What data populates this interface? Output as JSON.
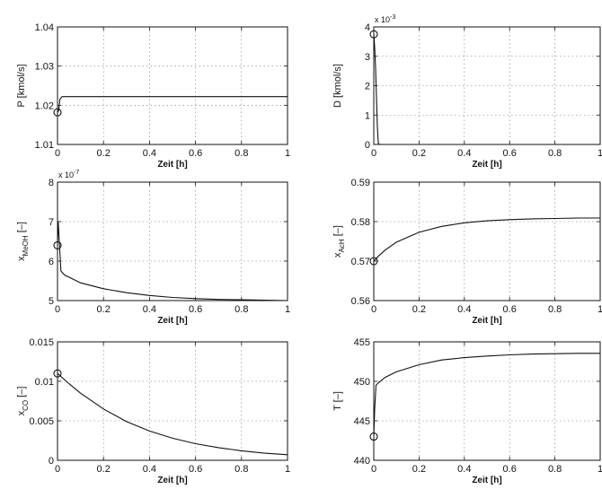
{
  "chart_data": [
    {
      "type": "line",
      "xlabel": "Zeit [h]",
      "ylabel": "P [kmol/s]",
      "ylim": [
        1.01,
        1.04
      ],
      "yticks": [
        "1.01",
        "1.02",
        "1.03",
        "1.04"
      ],
      "xlim": [
        0,
        1
      ],
      "xticks": [
        "0",
        "0.2",
        "0.4",
        "0.6",
        "0.8",
        "1"
      ],
      "grid": true,
      "x": [
        0,
        0.005,
        0.01,
        0.02,
        0.05,
        0.2,
        0.4,
        0.6,
        0.8,
        1.0
      ],
      "y": [
        1.0182,
        1.0186,
        1.0215,
        1.0222,
        1.0222,
        1.0222,
        1.0222,
        1.0222,
        1.0222,
        1.0222
      ],
      "marker_point": [
        0,
        1.0182
      ]
    },
    {
      "type": "line",
      "xlabel": "Zeit [h]",
      "ylabel": "D [kmol/s]",
      "multiplier": "x 10",
      "multiplier_exp": "-3",
      "ylim": [
        0,
        4
      ],
      "yticks": [
        "0",
        "1",
        "2",
        "3",
        "4"
      ],
      "xlim": [
        0,
        1
      ],
      "xticks": [
        "0",
        "0.2",
        "0.4",
        "0.6",
        "0.8",
        "1"
      ],
      "grid": true,
      "x": [
        0,
        0.004,
        0.008,
        0.012,
        0.016,
        0.02,
        0.025,
        0.2,
        0.4,
        0.6,
        0.8,
        1.0
      ],
      "y": [
        3.75,
        3.3,
        2.6,
        1.6,
        0.6,
        0.05,
        0,
        0,
        0,
        0,
        0,
        0
      ],
      "marker_point": [
        0,
        3.75
      ]
    },
    {
      "type": "line",
      "xlabel": "Zeit [h]",
      "ylabel": "x",
      "ylabel_sub": "MeOH",
      "ylabel_suffix": "[–]",
      "multiplier": "x 10",
      "multiplier_exp": "-7",
      "ylim": [
        5,
        8
      ],
      "yticks": [
        "5",
        "6",
        "7",
        "8"
      ],
      "xlim": [
        0,
        1
      ],
      "xticks": [
        "0",
        "0.2",
        "0.4",
        "0.6",
        "0.8",
        "1"
      ],
      "grid": true,
      "x": [
        0,
        0.003,
        0.008,
        0.015,
        0.03,
        0.1,
        0.2,
        0.3,
        0.4,
        0.5,
        0.6,
        0.7,
        0.8,
        0.9,
        1.0
      ],
      "y": [
        6.4,
        7.0,
        6.5,
        5.75,
        5.65,
        5.45,
        5.3,
        5.2,
        5.13,
        5.08,
        5.05,
        5.03,
        5.02,
        5.01,
        5.0
      ],
      "marker_point": [
        0,
        6.4
      ]
    },
    {
      "type": "line",
      "xlabel": "Zeit [h]",
      "ylabel": "x",
      "ylabel_sub": "AcH",
      "ylabel_suffix": "[–]",
      "ylim": [
        0.56,
        0.59
      ],
      "yticks": [
        "0.56",
        "0.57",
        "0.58",
        "0.59"
      ],
      "xlim": [
        0,
        1
      ],
      "xticks": [
        "0",
        "0.2",
        "0.4",
        "0.6",
        "0.8",
        "1"
      ],
      "grid": true,
      "x": [
        0,
        0.02,
        0.05,
        0.1,
        0.2,
        0.3,
        0.4,
        0.5,
        0.6,
        0.7,
        0.8,
        0.9,
        1.0
      ],
      "y": [
        0.57,
        0.5712,
        0.5728,
        0.5748,
        0.5773,
        0.5788,
        0.5797,
        0.5802,
        0.5805,
        0.5807,
        0.5808,
        0.5809,
        0.5809
      ],
      "marker_point": [
        0,
        0.57
      ]
    },
    {
      "type": "line",
      "xlabel": "Zeit [h]",
      "ylabel": "x",
      "ylabel_sub": "CO",
      "ylabel_suffix": "[–]",
      "ylim": [
        0,
        0.015
      ],
      "yticks": [
        "0",
        "0.005",
        "0.01",
        "0.015"
      ],
      "xlim": [
        0,
        1
      ],
      "xticks": [
        "0",
        "0.2",
        "0.4",
        "0.6",
        "0.8",
        "1"
      ],
      "grid": true,
      "x": [
        0,
        0.05,
        0.1,
        0.2,
        0.3,
        0.4,
        0.5,
        0.6,
        0.7,
        0.8,
        0.9,
        1.0
      ],
      "y": [
        0.011,
        0.0097,
        0.0085,
        0.0065,
        0.0049,
        0.0037,
        0.0028,
        0.0021,
        0.0016,
        0.0012,
        0.0009,
        0.0007
      ],
      "marker_point": [
        0,
        0.011
      ]
    },
    {
      "type": "line",
      "xlabel": "Zeit [h]",
      "ylabel": "T [–]",
      "ylim": [
        440,
        455
      ],
      "yticks": [
        "440",
        "445",
        "450",
        "455"
      ],
      "xlim": [
        0,
        1
      ],
      "xticks": [
        "0",
        "0.2",
        "0.4",
        "0.6",
        "0.8",
        "1"
      ],
      "grid": true,
      "x": [
        0,
        0.004,
        0.01,
        0.02,
        0.05,
        0.1,
        0.2,
        0.3,
        0.4,
        0.5,
        0.6,
        0.7,
        0.8,
        0.9,
        1.0
      ],
      "y": [
        443.0,
        446.5,
        449.5,
        449.8,
        450.5,
        451.2,
        452.1,
        452.7,
        453.0,
        453.2,
        453.35,
        453.45,
        453.5,
        453.55,
        453.55
      ],
      "marker_point": [
        0,
        443.0
      ]
    }
  ]
}
